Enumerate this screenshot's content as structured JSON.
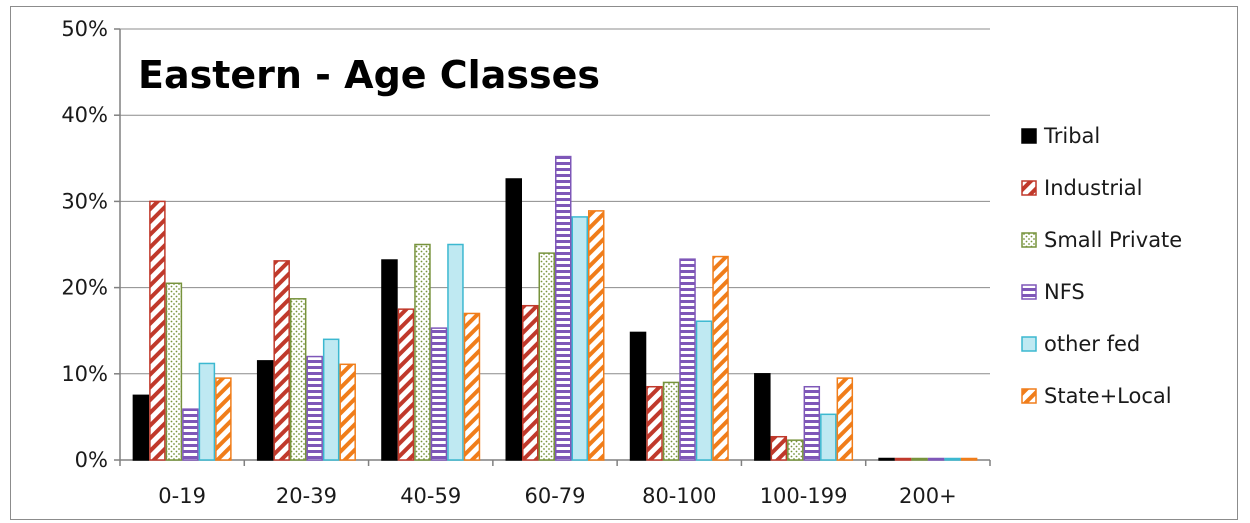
{
  "chart_data": {
    "type": "bar",
    "title": "Eastern - Age Classes",
    "xlabel": "",
    "ylabel": "",
    "categories": [
      "0-19",
      "20-39",
      "40-59",
      "60-79",
      "80-100",
      "100-199",
      "200+"
    ],
    "yticks": [
      "0%",
      "10%",
      "20%",
      "30%",
      "40%",
      "50%"
    ],
    "ylim": [
      0,
      50
    ],
    "grid": true,
    "legend_position": "right",
    "series": [
      {
        "name": "Tribal",
        "values": [
          7.5,
          11.5,
          23.2,
          32.6,
          14.8,
          10.0,
          0
        ],
        "color": "#000000",
        "pattern": "solid"
      },
      {
        "name": "Industrial",
        "values": [
          30.0,
          23.1,
          17.5,
          17.9,
          8.5,
          2.7,
          0
        ],
        "color": "#c0392b",
        "pattern": "diagonal"
      },
      {
        "name": "Small Private",
        "values": [
          20.5,
          18.7,
          25.0,
          24.0,
          9.0,
          2.3,
          0
        ],
        "color": "#77933c",
        "pattern": "dots"
      },
      {
        "name": "NFS",
        "values": [
          5.9,
          12.0,
          15.3,
          35.2,
          23.3,
          8.5,
          0
        ],
        "color": "#7e57b8",
        "pattern": "horizontal"
      },
      {
        "name": "other fed",
        "values": [
          11.2,
          14.0,
          25.0,
          28.2,
          16.1,
          5.3,
          0
        ],
        "color": "#3cb8d0",
        "pattern": "light"
      },
      {
        "name": "State+Local",
        "values": [
          9.5,
          11.1,
          17.0,
          28.9,
          23.6,
          9.5,
          0
        ],
        "color": "#f07d1a",
        "pattern": "diagonal"
      }
    ]
  }
}
